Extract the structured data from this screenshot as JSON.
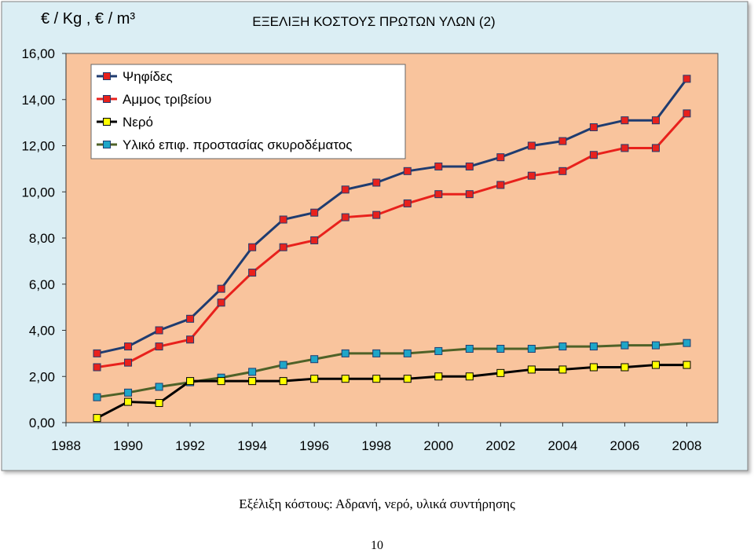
{
  "chart_data": {
    "type": "line",
    "title": "ΕΞΕΛΙΞΗ ΚΟΣΤΟΥΣ ΠΡΩΤΩΝ ΥΛΩΝ (2)",
    "ylabel": "€ / Kg , € / m³",
    "xlabel": "",
    "ylim": [
      0,
      16
    ],
    "y_ticks": [
      "0,00",
      "2,00",
      "4,00",
      "6,00",
      "8,00",
      "10,00",
      "12,00",
      "14,00",
      "16,00"
    ],
    "x_ticks": [
      "1988",
      "1990",
      "1992",
      "1994",
      "1996",
      "1998",
      "2000",
      "2002",
      "2004",
      "2006",
      "2008"
    ],
    "x": [
      1989,
      1990,
      1991,
      1992,
      1993,
      1994,
      1995,
      1996,
      1997,
      1998,
      1999,
      2000,
      2001,
      2002,
      2003,
      2004,
      2005,
      2006,
      2007,
      2008
    ],
    "grid": false,
    "legend_position": "top-left",
    "plot_background": "#f9c49d",
    "chart_background": "#dbeef4",
    "series": [
      {
        "name": "Ψηφίδες",
        "line_color": "#1f3c70",
        "marker_color": "#e8211c",
        "values": [
          3.0,
          3.3,
          4.0,
          4.5,
          5.8,
          7.6,
          8.8,
          9.1,
          10.1,
          10.4,
          10.9,
          11.1,
          11.1,
          11.5,
          12.0,
          12.2,
          12.8,
          13.1,
          13.1,
          14.9
        ]
      },
      {
        "name": "Αμμος τριβείου",
        "line_color": "#e8211c",
        "marker_color": "#e8211c",
        "values": [
          2.4,
          2.6,
          3.3,
          3.6,
          5.2,
          6.5,
          7.6,
          7.9,
          8.9,
          9.0,
          9.5,
          9.9,
          9.9,
          10.3,
          10.7,
          10.9,
          11.6,
          11.9,
          11.9,
          13.4
        ]
      },
      {
        "name": "Νερό",
        "line_color": "#000000",
        "marker_color": "#ffff00",
        "values": [
          0.2,
          0.9,
          0.85,
          1.8,
          1.8,
          1.8,
          1.8,
          1.9,
          1.9,
          1.9,
          1.9,
          2.0,
          2.0,
          2.15,
          2.3,
          2.3,
          2.4,
          2.4,
          2.5,
          2.5
        ]
      },
      {
        "name": "Υλικό επιφ. προστασίας σκυροδέματος",
        "line_color": "#4f6228",
        "marker_color": "#1ea6c8",
        "values": [
          1.1,
          1.3,
          1.55,
          1.75,
          1.95,
          2.2,
          2.5,
          2.75,
          3.0,
          3.0,
          3.0,
          3.1,
          3.2,
          3.2,
          3.2,
          3.3,
          3.3,
          3.35,
          3.35,
          3.45
        ]
      }
    ]
  },
  "caption": "Εξέλιξη κόστους: Αδρανή, νερό, υλικά συντήρησης",
  "page_number": "10"
}
